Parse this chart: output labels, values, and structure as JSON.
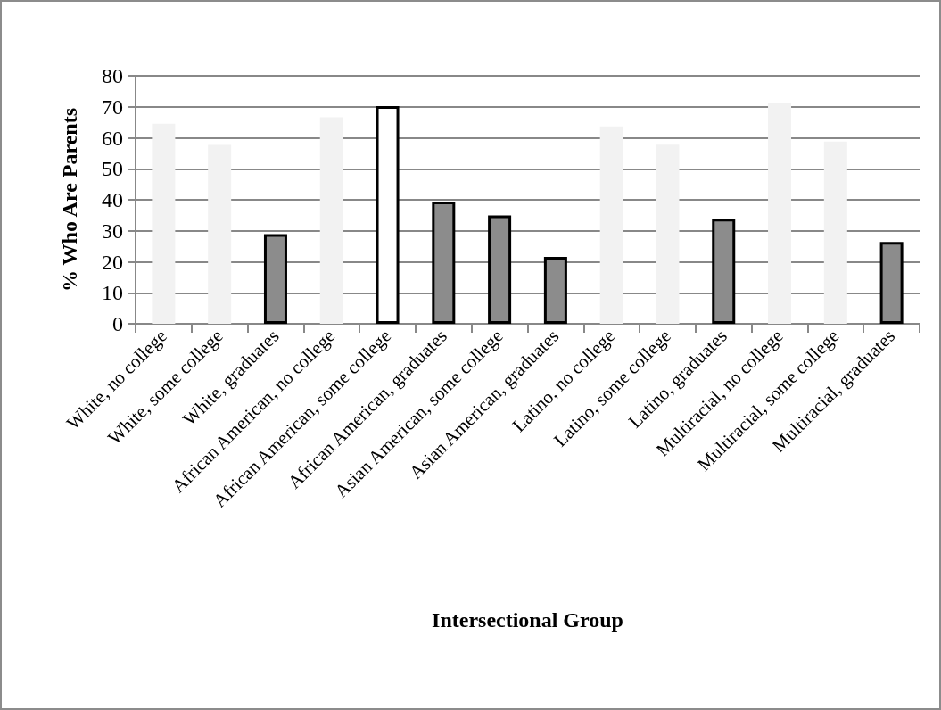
{
  "chart_data": {
    "type": "bar",
    "xlabel": "Intersectional Group",
    "ylabel": "% Who Are Parents",
    "categories": [
      "White, no college",
      "White, some college",
      "White, graduates",
      "African American, no college",
      "African American, some college",
      "African American, graduates",
      "Asian American, some college",
      "Asian American, graduates",
      "Latino, no college",
      "Latino, some college",
      "Latino, graduates",
      "Multiracial, no college",
      "Multiracial, some college",
      "Multiracial, graduates"
    ],
    "values": [
      64.5,
      57.7,
      28.9,
      66.6,
      70.2,
      39.4,
      35,
      21.6,
      63.7,
      57.8,
      33.9,
      71.4,
      58.8,
      26.4
    ],
    "colors": [
      "#f2f2f2",
      "#f2f2f2",
      "#8c8c8c",
      "#f2f2f2",
      "#ffffff",
      "#8c8c8c",
      "#8c8c8c",
      "#8c8c8c",
      "#f2f2f2",
      "#f2f2f2",
      "#8c8c8c",
      "#f2f2f2",
      "#f2f2f2",
      "#8c8c8c"
    ],
    "ylim": [
      0,
      80
    ],
    "yticks": [
      0,
      10,
      20,
      30,
      40,
      50,
      60,
      70,
      80
    ],
    "grid": "y"
  }
}
